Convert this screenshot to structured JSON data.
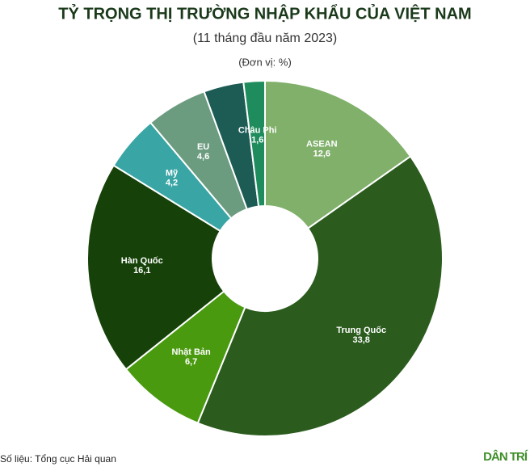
{
  "chart_data": {
    "type": "donut",
    "title": "TỶ TRỌNG THỊ TRƯỜNG NHẬP KHẨU CỦA VIỆT NAM",
    "subtitle": "(11 tháng đầu năm 2023)",
    "unit": "(Đơn vị: %)",
    "categories": [
      "ASEAN",
      "Trung Quốc",
      "Nhật Bản",
      "Hàn Quốc",
      "Mỹ",
      "EU",
      null,
      "Châu Phi"
    ],
    "values": [
      12.6,
      33.8,
      6.7,
      16.1,
      4.2,
      4.6,
      3,
      1.6
    ],
    "value_labels": [
      "12,6",
      "33,8",
      "6,7",
      "16,1",
      "4,2",
      "4,6",
      null,
      "1,6"
    ],
    "colors": [
      "#80b06a",
      "#2b5c1e",
      "#4a9a10",
      "#164209",
      "#3aa5a5",
      "#6c9c80",
      "#1d5b55",
      "#1e8c5c"
    ],
    "source": "Số liệu: Tổng cục Hải quan",
    "logo": "DÂN TRÍ"
  }
}
